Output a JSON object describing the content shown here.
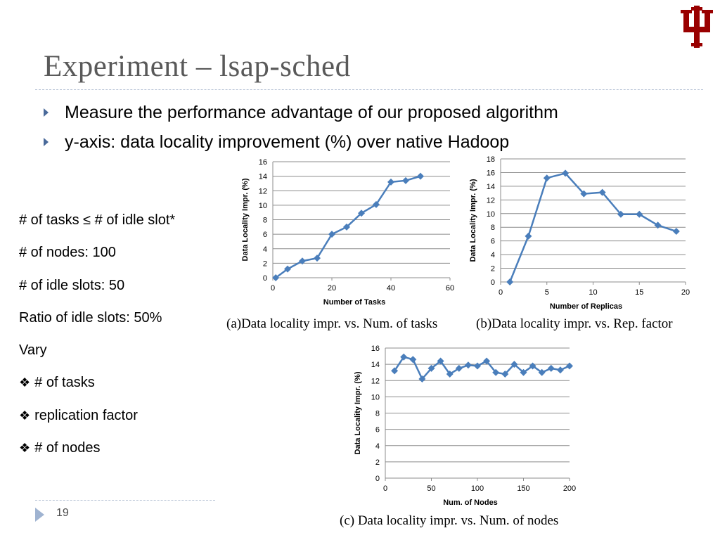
{
  "slide": {
    "title": "Experiment – lsap-sched",
    "bullets": [
      "Measure the performance advantage of our proposed algorithm",
      "y-axis: data locality improvement (%) over native Hadoop"
    ],
    "side_lines": [
      "# of tasks ≤  # of idle slot*",
      "# of nodes: 100",
      "# of idle slots: 50",
      "Ratio of idle slots: 50%",
      "Vary"
    ],
    "side_items": [
      "# of tasks",
      "replication factor",
      "# of nodes"
    ],
    "page_number": "19",
    "captions": [
      "(a)Data locality impr. vs. Num. of tasks",
      "(b)Data locality impr. vs. Rep. factor",
      "(c) Data locality impr. vs. Num. of nodes"
    ]
  },
  "colors": {
    "series": "#4a7ebb",
    "grid": "#8c8c8c",
    "axis": "#8c8c8c",
    "title": "#595959",
    "logo": "#990000",
    "bullet_arrow": "#4a6a9a"
  },
  "icons": {
    "logo": "iu-trident-logo",
    "bullet": "arrow-bullet-icon",
    "item": "four-diamond-icon",
    "footer": "arrow-icon"
  },
  "chart_data": [
    {
      "id": "a",
      "type": "line",
      "xlabel": "Number of Tasks",
      "ylabel": "Data Locality Impr. (%)",
      "xlim": [
        0,
        60
      ],
      "ylim": [
        0,
        16
      ],
      "xticks": [
        0,
        20,
        40,
        60
      ],
      "yticks": [
        0,
        2,
        4,
        6,
        8,
        10,
        12,
        14,
        16
      ],
      "grid": "horizontal",
      "marker": "diamond",
      "series": [
        {
          "x": [
            1,
            5,
            10,
            15,
            20,
            25,
            30,
            35,
            40,
            45,
            50
          ],
          "y": [
            0.0,
            1.2,
            2.3,
            2.7,
            6.0,
            7.0,
            8.9,
            10.1,
            13.2,
            13.4,
            14.0
          ]
        }
      ]
    },
    {
      "id": "b",
      "type": "line",
      "xlabel": "Number of Replicas",
      "ylabel": "Data Locality Impr. (%)",
      "xlim": [
        0,
        20
      ],
      "ylim": [
        0,
        18
      ],
      "xticks": [
        0,
        5,
        10,
        15,
        20
      ],
      "yticks": [
        0,
        2,
        4,
        6,
        8,
        10,
        12,
        14,
        16,
        18
      ],
      "grid": "horizontal",
      "marker": "diamond",
      "series": [
        {
          "x": [
            1,
            3,
            5,
            7,
            9,
            11,
            13,
            15,
            17,
            19
          ],
          "y": [
            0.0,
            6.7,
            15.2,
            15.9,
            12.9,
            13.1,
            9.9,
            9.9,
            8.3,
            7.4
          ]
        }
      ]
    },
    {
      "id": "c",
      "type": "line",
      "xlabel": "Num. of Nodes",
      "ylabel": "Data Locality Impr. (%)",
      "xlim": [
        0,
        200
      ],
      "ylim": [
        0,
        16
      ],
      "xticks": [
        0,
        50,
        100,
        150,
        200
      ],
      "yticks": [
        0,
        2,
        4,
        6,
        8,
        10,
        12,
        14,
        16
      ],
      "grid": "horizontal",
      "marker": "diamond",
      "series": [
        {
          "x": [
            10,
            20,
            30,
            40,
            50,
            60,
            70,
            80,
            90,
            100,
            110,
            120,
            130,
            140,
            150,
            160,
            170,
            180,
            190,
            200
          ],
          "y": [
            13.2,
            14.9,
            14.6,
            12.2,
            13.5,
            14.4,
            12.8,
            13.5,
            13.9,
            13.8,
            14.4,
            13.0,
            12.8,
            14.0,
            13.0,
            13.8,
            13.0,
            13.5,
            13.3,
            13.8
          ]
        }
      ]
    }
  ]
}
